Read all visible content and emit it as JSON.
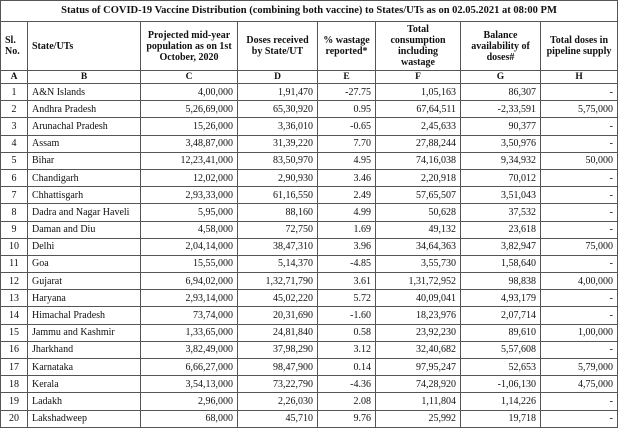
{
  "table": {
    "title": "Status of COVID-19 Vaccine Distribution (combining both vaccine) to States/UTs  as on 02.05.2021 at 08:00 PM",
    "headers": [
      "Sl. No.",
      "State/UTs",
      "Projected mid-year population as on 1st October, 2020",
      "Doses received by State/UT",
      "% wastage reported*",
      "Total consumption including wastage",
      "Balance availability of doses#",
      "Total doses in pipeline supply"
    ],
    "letters": [
      "A",
      "B",
      "C",
      "D",
      "E",
      "F",
      "G",
      "H"
    ],
    "rows": [
      [
        "1",
        "A&N Islands",
        "4,00,000",
        "1,91,470",
        "-27.75",
        "1,05,163",
        "86,307",
        "-"
      ],
      [
        "2",
        "Andhra Pradesh",
        "5,26,69,000",
        "65,30,920",
        "0.95",
        "67,64,511",
        "-2,33,591",
        "5,75,000"
      ],
      [
        "3",
        "Arunachal Pradesh",
        "15,26,000",
        "3,36,010",
        "-0.65",
        "2,45,633",
        "90,377",
        "-"
      ],
      [
        "4",
        "Assam",
        "3,48,87,000",
        "31,39,220",
        "7.70",
        "27,88,244",
        "3,50,976",
        "-"
      ],
      [
        "5",
        "Bihar",
        "12,23,41,000",
        "83,50,970",
        "4.95",
        "74,16,038",
        "9,34,932",
        "50,000"
      ],
      [
        "6",
        "Chandigarh",
        "12,02,000",
        "2,90,930",
        "3.46",
        "2,20,918",
        "70,012",
        "-"
      ],
      [
        "7",
        "Chhattisgarh",
        "2,93,33,000",
        "61,16,550",
        "2.49",
        "57,65,507",
        "3,51,043",
        "-"
      ],
      [
        "8",
        "Dadra and Nagar Haveli",
        "5,95,000",
        "88,160",
        "4.99",
        "50,628",
        "37,532",
        "-"
      ],
      [
        "9",
        "Daman and Diu",
        "4,58,000",
        "72,750",
        "1.69",
        "49,132",
        "23,618",
        "-"
      ],
      [
        "10",
        "Delhi",
        "2,04,14,000",
        "38,47,310",
        "3.96",
        "34,64,363",
        "3,82,947",
        "75,000"
      ],
      [
        "11",
        "Goa",
        "15,55,000",
        "5,14,370",
        "-4.85",
        "3,55,730",
        "1,58,640",
        "-"
      ],
      [
        "12",
        "Gujarat",
        "6,94,02,000",
        "1,32,71,790",
        "3.61",
        "1,31,72,952",
        "98,838",
        "4,00,000"
      ],
      [
        "13",
        "Haryana",
        "2,93,14,000",
        "45,02,220",
        "5.72",
        "40,09,041",
        "4,93,179",
        "-"
      ],
      [
        "14",
        "Himachal Pradesh",
        "73,74,000",
        "20,31,690",
        "-1.60",
        "18,23,976",
        "2,07,714",
        "-"
      ],
      [
        "15",
        "Jammu and Kashmir",
        "1,33,65,000",
        "24,81,840",
        "0.58",
        "23,92,230",
        "89,610",
        "1,00,000"
      ],
      [
        "16",
        "Jharkhand",
        "3,82,49,000",
        "37,98,290",
        "3.12",
        "32,40,682",
        "5,57,608",
        "-"
      ],
      [
        "17",
        "Karnataka",
        "6,66,27,000",
        "98,47,900",
        "0.14",
        "97,95,247",
        "52,653",
        "5,79,000"
      ],
      [
        "18",
        "Kerala",
        "3,54,13,000",
        "73,22,790",
        "-4.36",
        "74,28,920",
        "-1,06,130",
        "4,75,000"
      ],
      [
        "19",
        "Ladakh",
        "2,96,000",
        "2,26,030",
        "2.08",
        "1,11,804",
        "1,14,226",
        "-"
      ],
      [
        "20",
        "Lakshadweep",
        "68,000",
        "45,710",
        "9.76",
        "25,992",
        "19,718",
        "-"
      ]
    ]
  }
}
